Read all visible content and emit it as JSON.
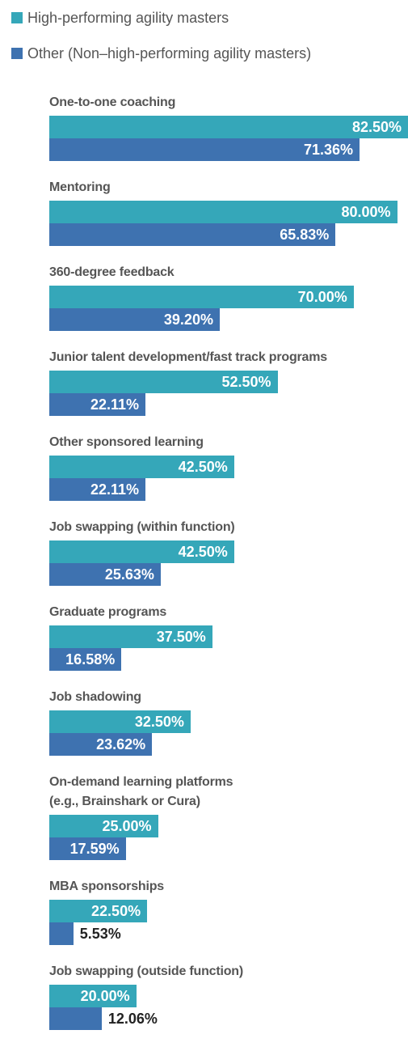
{
  "chart_data": {
    "type": "bar",
    "orientation": "horizontal",
    "categories": [
      "One-to-one coaching",
      "Mentoring",
      "360-degree feedback",
      "Junior talent development/fast track programs",
      "Other sponsored learning",
      "Job swapping (within function)",
      "Graduate programs",
      "Job shadowing",
      "On-demand learning platforms\n(e.g., Brainshark or Cura)",
      "MBA sponsorships",
      "Job swapping (outside function)"
    ],
    "series": [
      {
        "name": "High-performing agility masters",
        "color": "#35a7b9",
        "values": [
          82.5,
          80,
          70,
          52.5,
          42.5,
          42.5,
          37.5,
          32.5,
          25,
          22.5,
          20
        ],
        "value_labels": [
          "82.50%",
          "80.00%",
          "70.00%",
          "52.50%",
          "42.50%",
          "42.50%",
          "37.50%",
          "32.50%",
          "25.00%",
          "22.50%",
          "20.00%"
        ]
      },
      {
        "name": "Other (Non–high-performing agility masters)",
        "color": "#3e72b0",
        "values": [
          71.36,
          65.83,
          39.2,
          22.11,
          22.11,
          25.63,
          16.58,
          23.62,
          17.59,
          5.53,
          12.06
        ],
        "value_labels": [
          "71.36%",
          "65.83%",
          "39.20%",
          "22.11%",
          "22.11%",
          "25.63%",
          "16.58%",
          "23.62%",
          "17.59%",
          "5.53%",
          "12.06%"
        ]
      }
    ],
    "legend": "top-left"
  }
}
